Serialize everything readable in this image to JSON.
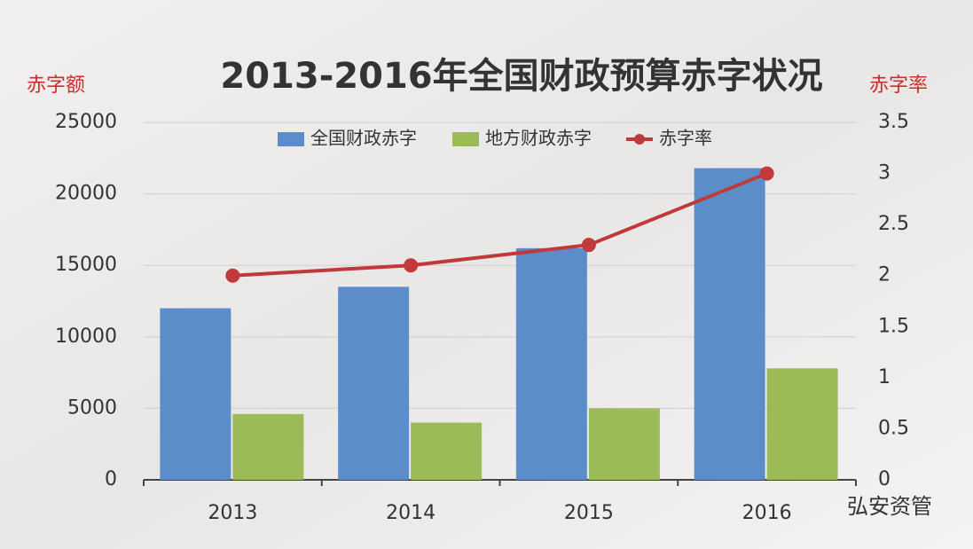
{
  "chart_data": {
    "type": "bar",
    "title": "2013-2016年全国财政预算赤字状况",
    "y_label": "赤字额",
    "y2_label": "赤字率",
    "watermark": "弘安资管",
    "categories": [
      "2013",
      "2014",
      "2015",
      "2016"
    ],
    "series": [
      {
        "name": "全国财政赤字",
        "color": "#5b8ec9",
        "values": [
          12000,
          13500,
          16200,
          21800
        ]
      },
      {
        "name": "地方财政赤字",
        "color": "#9bbb59",
        "values": [
          4600,
          4000,
          5000,
          7800
        ]
      },
      {
        "name": "赤字率",
        "color": "#c0393b",
        "type": "line",
        "axis": "y2",
        "values": [
          2.0,
          2.1,
          2.3,
          3.0
        ]
      }
    ],
    "ylim": [
      0,
      25000
    ],
    "yticks": [
      0,
      5000,
      10000,
      15000,
      20000,
      25000
    ],
    "y2lim": [
      0,
      3.5
    ],
    "y2ticks": [
      0,
      0.5,
      1,
      1.5,
      2,
      2.5,
      3,
      3.5
    ],
    "grid": true,
    "legend": "top"
  }
}
